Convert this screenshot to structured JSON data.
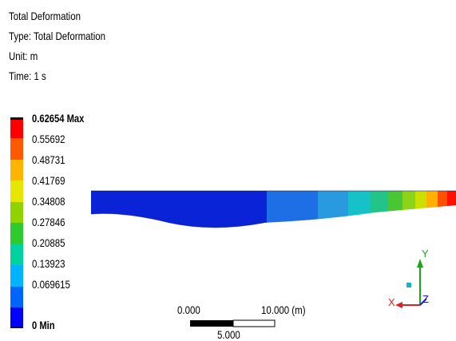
{
  "result": {
    "title": "Total Deformation",
    "type_line": "Type: Total Deformation",
    "unit_line": "Unit: m",
    "time_line": "Time: 1 s"
  },
  "legend": {
    "labels": [
      "0.62654 Max",
      "0.55692",
      "0.48731",
      "0.41769",
      "0.34808",
      "0.27846",
      "0.20885",
      "0.13923",
      "0.069615",
      "0 Min"
    ],
    "colors": [
      "#ff0000",
      "#ff5a00",
      "#ffb400",
      "#e6e600",
      "#8fd400",
      "#2dcb2d",
      "#00d2a0",
      "#00b4ff",
      "#0064ff",
      "#0000ff"
    ]
  },
  "scale_bar": {
    "left_label": "0.000",
    "right_label": "10.000 (m)",
    "mid_label": "5.000"
  },
  "triad": {
    "x_label": "X",
    "y_label": "Y",
    "z_label": "Z",
    "x_color": "#e0201e",
    "y_color": "#1aa61a",
    "z_color": "#1a1ad6"
  },
  "model": {
    "band_colors": [
      "#0a23d6",
      "#1e6ee6",
      "#2a9ae0",
      "#16c2c8",
      "#22c48a",
      "#49c634",
      "#8cd418",
      "#c9e000",
      "#ffb000",
      "#ff5000",
      "#ff1000"
    ]
  }
}
